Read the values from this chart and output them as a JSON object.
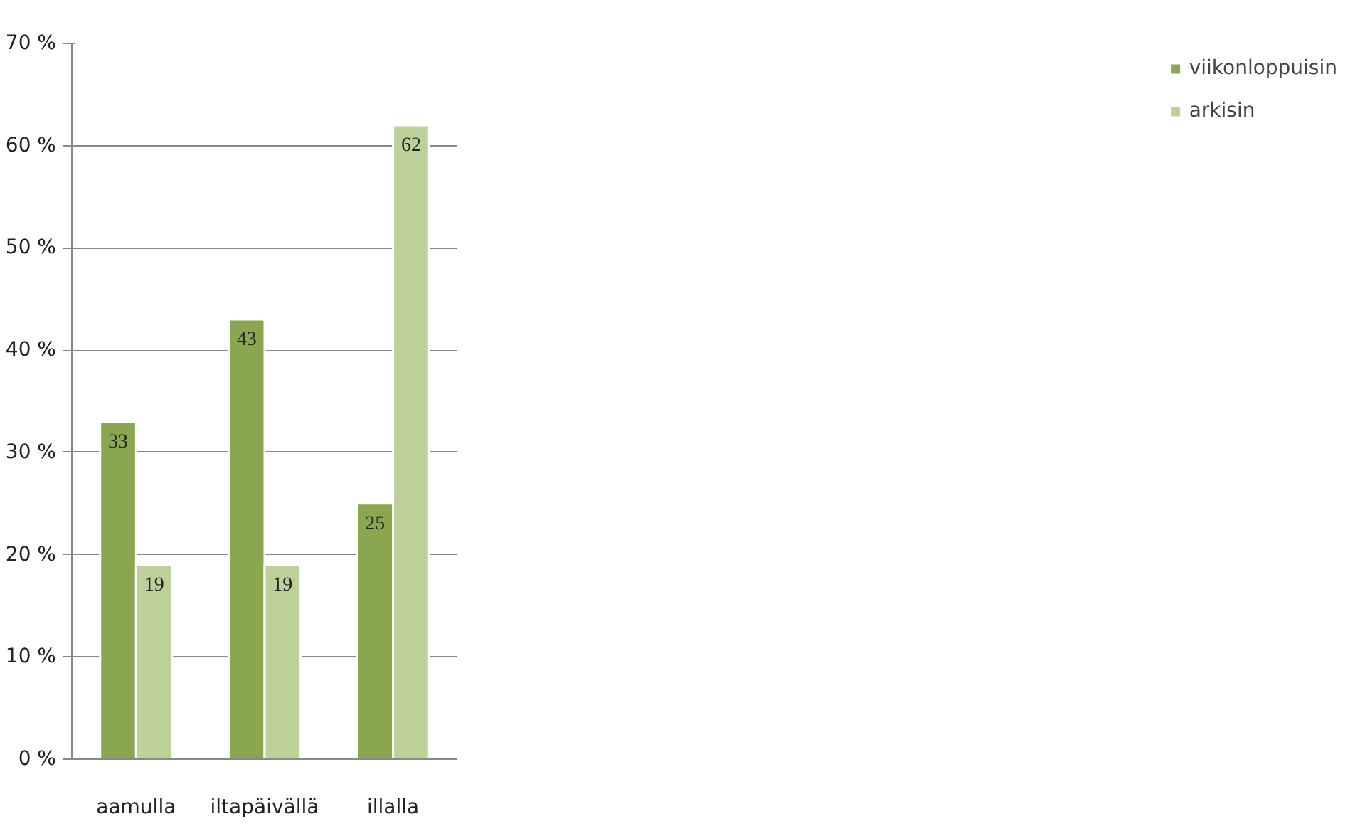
{
  "chart_data": {
    "type": "bar",
    "categories": [
      "aamulla",
      "iltapäivällä",
      "illalla"
    ],
    "series": [
      {
        "name": "viikonloppuisin",
        "color": "#8aa64e",
        "values": [
          33,
          43,
          25
        ]
      },
      {
        "name": "arkisin",
        "color": "#bcd09a",
        "values": [
          19,
          19,
          62
        ]
      }
    ],
    "ylim": [
      0,
      70
    ],
    "yticks": [
      {
        "value": 0,
        "label": "0 %"
      },
      {
        "value": 10,
        "label": "10 %"
      },
      {
        "value": 20,
        "label": "20 %"
      },
      {
        "value": 30,
        "label": "30 %"
      },
      {
        "value": 40,
        "label": "40 %"
      },
      {
        "value": 50,
        "label": "50 %"
      },
      {
        "value": 60,
        "label": "60 %"
      },
      {
        "value": 70,
        "label": "70 %"
      }
    ],
    "grid": "y",
    "legend": "right",
    "data_labels": true
  }
}
